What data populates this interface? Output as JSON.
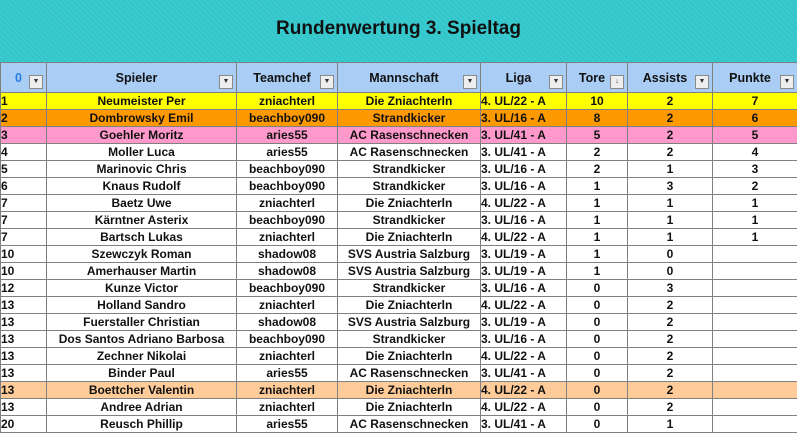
{
  "title": "Rundenwertung 3. Spieltag",
  "columns": [
    {
      "key": "rank",
      "label": "0"
    },
    {
      "key": "player",
      "label": "Spieler"
    },
    {
      "key": "chef",
      "label": "Teamchef"
    },
    {
      "key": "team",
      "label": "Mannschaft"
    },
    {
      "key": "league",
      "label": "Liga"
    },
    {
      "key": "goals",
      "label": "Tore"
    },
    {
      "key": "assists",
      "label": "Assists"
    },
    {
      "key": "points",
      "label": "Punkte"
    }
  ],
  "filter_icon": "dropdown-arrow-icon",
  "sort_icon": "sort-descending-icon",
  "colors": {
    "banner": "#33c7cc",
    "header": "#a9cdf5",
    "yellow": "#ffff00",
    "orange": "#ff9900",
    "pink": "#ff99cc",
    "peach": "#ffcc99"
  },
  "rows": [
    {
      "rank": "1",
      "player": "Neumeister Per",
      "chef": "zniachterl",
      "team": "Die Zniachterln",
      "league": "4. UL/22 - A",
      "goals": "10",
      "assists": "2",
      "points": "7",
      "highlight": "yellow"
    },
    {
      "rank": "2",
      "player": "Dombrowsky Emil",
      "chef": "beachboy090",
      "team": "Strandkicker",
      "league": "3. UL/16 - A",
      "goals": "8",
      "assists": "2",
      "points": "6",
      "highlight": "orange"
    },
    {
      "rank": "3",
      "player": "Goehler Moritz",
      "chef": "aries55",
      "team": "AC Rasenschnecken",
      "league": "3. UL/41 - A",
      "goals": "5",
      "assists": "2",
      "points": "5",
      "highlight": "pink"
    },
    {
      "rank": "4",
      "player": "Moller Luca",
      "chef": "aries55",
      "team": "AC Rasenschnecken",
      "league": "3. UL/41 - A",
      "goals": "2",
      "assists": "2",
      "points": "4",
      "highlight": ""
    },
    {
      "rank": "5",
      "player": "Marinovic Chris",
      "chef": "beachboy090",
      "team": "Strandkicker",
      "league": "3. UL/16 - A",
      "goals": "2",
      "assists": "1",
      "points": "3",
      "highlight": ""
    },
    {
      "rank": "6",
      "player": "Knaus Rudolf",
      "chef": "beachboy090",
      "team": "Strandkicker",
      "league": "3. UL/16 - A",
      "goals": "1",
      "assists": "3",
      "points": "2",
      "highlight": ""
    },
    {
      "rank": "7",
      "player": "Baetz Uwe",
      "chef": "zniachterl",
      "team": "Die Zniachterln",
      "league": "4. UL/22 - A",
      "goals": "1",
      "assists": "1",
      "points": "1",
      "highlight": ""
    },
    {
      "rank": "7",
      "player": "Kärntner Asterix",
      "chef": "beachboy090",
      "team": "Strandkicker",
      "league": "3. UL/16 - A",
      "goals": "1",
      "assists": "1",
      "points": "1",
      "highlight": ""
    },
    {
      "rank": "7",
      "player": "Bartsch Lukas",
      "chef": "zniachterl",
      "team": "Die Zniachterln",
      "league": "4. UL/22 - A",
      "goals": "1",
      "assists": "1",
      "points": "1",
      "highlight": ""
    },
    {
      "rank": "10",
      "player": "Szewczyk Roman",
      "chef": "shadow08",
      "team": "SVS Austria Salzburg",
      "league": "3. UL/19 - A",
      "goals": "1",
      "assists": "0",
      "points": "",
      "highlight": ""
    },
    {
      "rank": "10",
      "player": "Amerhauser Martin",
      "chef": "shadow08",
      "team": "SVS Austria Salzburg",
      "league": "3. UL/19 - A",
      "goals": "1",
      "assists": "0",
      "points": "",
      "highlight": ""
    },
    {
      "rank": "12",
      "player": "Kunze Victor",
      "chef": "beachboy090",
      "team": "Strandkicker",
      "league": "3. UL/16 - A",
      "goals": "0",
      "assists": "3",
      "points": "",
      "highlight": ""
    },
    {
      "rank": "13",
      "player": "Holland Sandro",
      "chef": "zniachterl",
      "team": "Die Zniachterln",
      "league": "4. UL/22 - A",
      "goals": "0",
      "assists": "2",
      "points": "",
      "highlight": ""
    },
    {
      "rank": "13",
      "player": "Fuerstaller Christian",
      "chef": "shadow08",
      "team": "SVS Austria Salzburg",
      "league": "3. UL/19 - A",
      "goals": "0",
      "assists": "2",
      "points": "",
      "highlight": ""
    },
    {
      "rank": "13",
      "player": "Dos Santos Adriano Barbosa",
      "chef": "beachboy090",
      "team": "Strandkicker",
      "league": "3. UL/16 - A",
      "goals": "0",
      "assists": "2",
      "points": "",
      "highlight": ""
    },
    {
      "rank": "13",
      "player": "Zechner Nikolai",
      "chef": "zniachterl",
      "team": "Die Zniachterln",
      "league": "4. UL/22 - A",
      "goals": "0",
      "assists": "2",
      "points": "",
      "highlight": ""
    },
    {
      "rank": "13",
      "player": "Binder Paul",
      "chef": "aries55",
      "team": "AC Rasenschnecken",
      "league": "3. UL/41 - A",
      "goals": "0",
      "assists": "2",
      "points": "",
      "highlight": ""
    },
    {
      "rank": "13",
      "player": "Boettcher Valentin",
      "chef": "zniachterl",
      "team": "Die Zniachterln",
      "league": "4. UL/22 - A",
      "goals": "0",
      "assists": "2",
      "points": "",
      "highlight": "peach"
    },
    {
      "rank": "13",
      "player": "Andree Adrian",
      "chef": "zniachterl",
      "team": "Die Zniachterln",
      "league": "4. UL/22 - A",
      "goals": "0",
      "assists": "2",
      "points": "",
      "highlight": ""
    },
    {
      "rank": "20",
      "player": "Reusch Phillip",
      "chef": "aries55",
      "team": "AC Rasenschnecken",
      "league": "3. UL/41 - A",
      "goals": "0",
      "assists": "1",
      "points": "",
      "highlight": ""
    }
  ]
}
